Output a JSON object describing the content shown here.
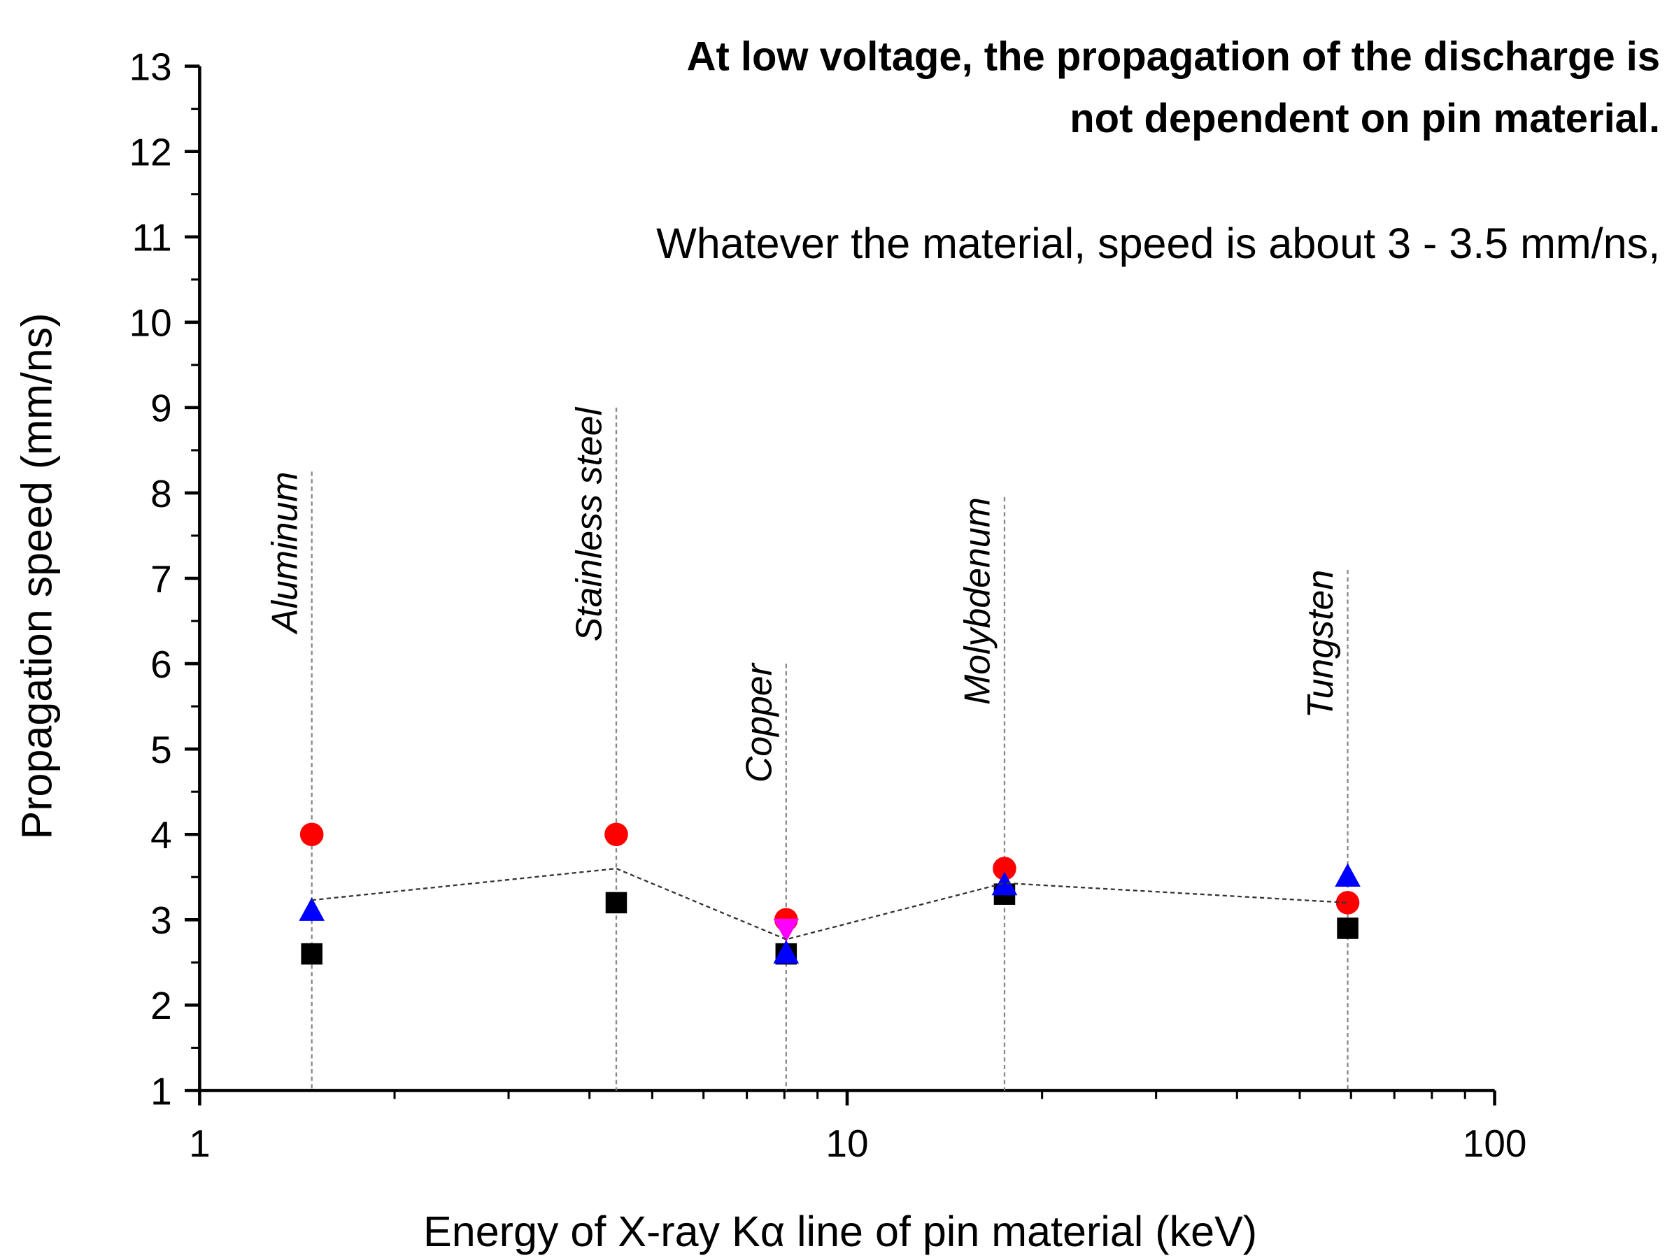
{
  "chart_data": {
    "type": "scatter",
    "title": [
      "At low voltage, the propagation of the discharge is",
      "not dependent on pin material."
    ],
    "subtitle": "Whatever the material, speed is about 3 - 3.5 mm/ns,",
    "x_label": "Energy of X-ray Kα line of pin material (keV)",
    "y_label": "Propagation speed (mm/ns)",
    "x": [
      1.49,
      4.4,
      8.05,
      17.5,
      59.3
    ],
    "series": [
      {
        "marker": "square",
        "color": "#000000",
        "values": [
          2.6,
          3.2,
          2.6,
          3.3,
          2.9
        ]
      },
      {
        "marker": "circle",
        "color": "#ff0000",
        "values": [
          4.0,
          4.0,
          3.0,
          3.6,
          3.2
        ]
      },
      {
        "marker": "triangle-down",
        "color": "#ff00ff",
        "values": [
          null,
          null,
          2.9,
          null,
          null
        ]
      },
      {
        "marker": "triangle",
        "color": "#0000ff",
        "values": [
          3.1,
          null,
          2.6,
          3.4,
          3.5
        ]
      },
      {
        "marker": "dashed-line",
        "color": "#333333",
        "values": [
          3.23,
          3.6,
          2.77,
          3.43,
          3.2
        ]
      }
    ],
    "annotations": [
      {
        "label": "Aluminum",
        "x": 1.49,
        "top": 8.25
      },
      {
        "label": "Stainless steel",
        "x": 4.4,
        "top": 9
      },
      {
        "label": "Copper",
        "x": 8.05,
        "top": 6
      },
      {
        "label": "Molybdenum",
        "x": 17.5,
        "top": 7.95
      },
      {
        "label": "Tungsten",
        "x": 59.3,
        "top": 7.1
      }
    ],
    "xscale": "log",
    "xlim": [
      1,
      100
    ],
    "xticks": [
      1,
      10,
      100
    ],
    "ylim": [
      1,
      13
    ],
    "yticks": [
      1,
      2,
      3,
      4,
      5,
      6,
      7,
      8,
      9,
      10,
      11,
      12,
      13
    ],
    "grid": false
  }
}
